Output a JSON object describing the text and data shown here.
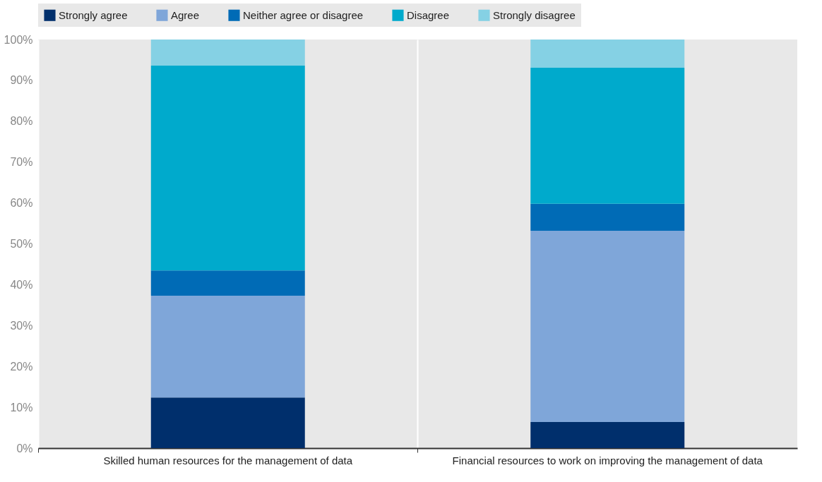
{
  "chart_data": {
    "type": "bar",
    "stacked": true,
    "categories": [
      "Skilled human resources for the management of data",
      "Financial resources to work on improving the management of data"
    ],
    "series": [
      {
        "name": "Strongly agree",
        "color": "#002f6c",
        "values": [
          12.4,
          6.4
        ]
      },
      {
        "name": "Agree",
        "color": "#7fa6d9",
        "values": [
          24.9,
          46.8
        ]
      },
      {
        "name": "Neither agree or disagree",
        "color": "#006bb6",
        "values": [
          6.2,
          6.6
        ]
      },
      {
        "name": "Disagree",
        "color": "#00aacc",
        "values": [
          50.1,
          33.3
        ]
      },
      {
        "name": "Strongly disagree",
        "color": "#85d1e4",
        "values": [
          6.4,
          6.9
        ]
      }
    ],
    "ylim": [
      0,
      100
    ],
    "yticks": [
      {
        "value": 0,
        "label": "0%"
      },
      {
        "value": 10,
        "label": "10%"
      },
      {
        "value": 20,
        "label": "20%"
      },
      {
        "value": 30,
        "label": "30%"
      },
      {
        "value": 40,
        "label": "40%"
      },
      {
        "value": 50,
        "label": "50%"
      },
      {
        "value": 60,
        "label": "60%"
      },
      {
        "value": 70,
        "label": "70%"
      },
      {
        "value": 80,
        "label": "80%"
      },
      {
        "value": 90,
        "label": "90%"
      },
      {
        "value": 100,
        "label": "100%"
      }
    ],
    "grid": "x",
    "legend": "top"
  }
}
